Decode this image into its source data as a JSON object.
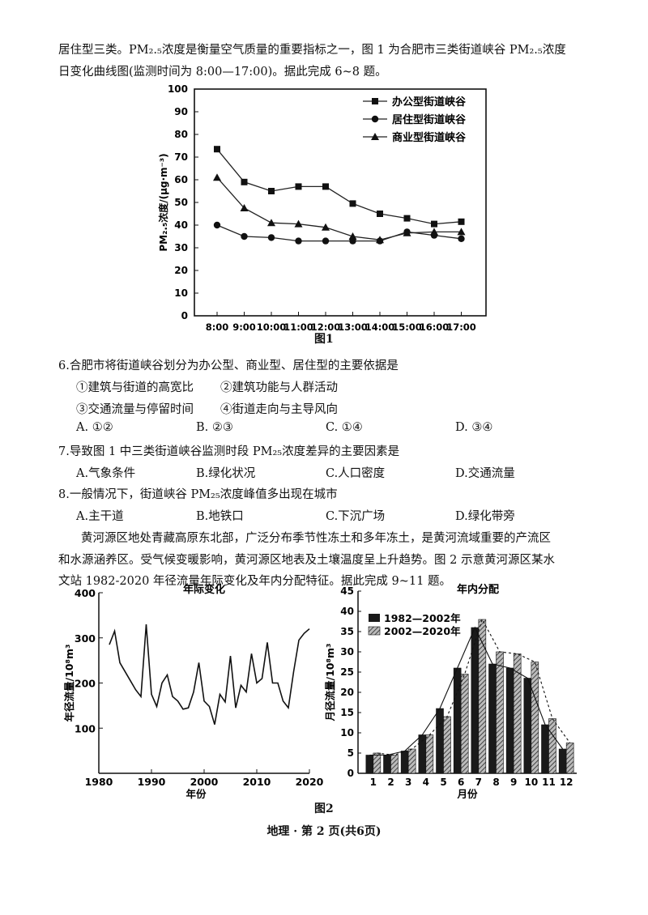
{
  "intro": {
    "line1": "居住型三类。PM₂.₅浓度是衡量空气质量的重要指标之一，图 1 为合肥市三类街道峡谷 PM₂.₅浓度",
    "line2": "日变化曲线图(监测时间为 8:00—17:00)。据此完成 6~8 题。"
  },
  "fig1": {
    "caption": "图1",
    "chart_data": {
      "type": "line",
      "x": [
        "8:00",
        "9:00",
        "10:00",
        "11:00",
        "12:00",
        "13:00",
        "14:00",
        "15:00",
        "16:00",
        "17:00"
      ],
      "ylabel": "PM₂.₅浓度/(μg·m⁻³)",
      "ylim": [
        0,
        100
      ],
      "yticks": [
        0,
        10,
        20,
        30,
        40,
        50,
        60,
        70,
        80,
        90,
        100
      ],
      "legend_position": "top-right",
      "series": [
        {
          "name": "办公型街道峡谷",
          "marker": "square",
          "values": [
            73.5,
            59,
            55,
            57,
            57,
            49.5,
            45,
            43,
            40.5,
            41.5
          ]
        },
        {
          "name": "居住型街道峡谷",
          "marker": "circle",
          "values": [
            40,
            35,
            34.5,
            33,
            33,
            33,
            33,
            37,
            35.5,
            34
          ]
        },
        {
          "name": "商业型街道峡谷",
          "marker": "triangle",
          "values": [
            61,
            47.5,
            41,
            40.5,
            39,
            35,
            33.5,
            36.5,
            37,
            37
          ]
        }
      ]
    }
  },
  "q6": {
    "stem": "6.合肥市将街道峡谷划分为办公型、商业型、居住型的主要依据是",
    "s1": "①建筑与街道的高宽比",
    "s2": "②建筑功能与人群活动",
    "s3": "③交通流量与停留时间",
    "s4": "④街道走向与主导风向",
    "a": "A. ①②",
    "b": "B. ②③",
    "c": "C. ①④",
    "d": "D. ③④"
  },
  "q7": {
    "stem": "7.导致图 1 中三类街道峡谷监测时段 PM₂₅浓度差异的主要因素是",
    "a": "A.气象条件",
    "b": "B.绿化状况",
    "c": "C.人口密度",
    "d": "D.交通流量"
  },
  "q8": {
    "stem": "8.一般情况下，街道峡谷 PM₂₅浓度峰值多出现在城市",
    "a": "A.主干道",
    "b": "B.地铁口",
    "c": "C.下沉广场",
    "d": "D.绿化带旁"
  },
  "passage2": {
    "line1": "黄河源区地处青藏高原东北部，广泛分布季节性冻土和多年冻土，是黄河流域重要的产流区",
    "line2": "和水源涵养区。受气候变暖影响，黄河源区地表及土壤温度呈上升趋势。图 2 示意黄河源区某水",
    "line3": "文站 1982-2020 年径流量年际变化及年内分配特征。据此完成 9~11 题。"
  },
  "fig2": {
    "caption": "图2",
    "left": {
      "title": "年际变化",
      "chart_data": {
        "type": "line",
        "title": "年际变化",
        "xlabel": "年份",
        "ylabel": "年径流量/10⁸m³",
        "xlim": [
          1980,
          2020
        ],
        "ylim": [
          0,
          400
        ],
        "xticks": [
          1980,
          1990,
          2000,
          2010,
          2020
        ],
        "yticks": [
          100,
          200,
          300,
          400
        ],
        "x": [
          1982,
          1983,
          1984,
          1985,
          1986,
          1987,
          1988,
          1989,
          1990,
          1991,
          1992,
          1993,
          1994,
          1995,
          1996,
          1997,
          1998,
          1999,
          2000,
          2001,
          2002,
          2003,
          2004,
          2005,
          2006,
          2007,
          2008,
          2009,
          2010,
          2011,
          2012,
          2013,
          2014,
          2015,
          2016,
          2017,
          2018,
          2019,
          2020
        ],
        "values": [
          285,
          315,
          245,
          225,
          205,
          185,
          170,
          330,
          175,
          148,
          200,
          218,
          170,
          160,
          142,
          145,
          180,
          245,
          160,
          148,
          108,
          175,
          158,
          260,
          145,
          195,
          180,
          265,
          200,
          210,
          290,
          200,
          200,
          160,
          145,
          225,
          295,
          310,
          320
        ]
      }
    },
    "right": {
      "title": "年内分配",
      "chart_data": {
        "type": "bar",
        "title": "年内分配",
        "xlabel": "月份",
        "ylabel": "月径流量/10⁸m³",
        "categories": [
          "1",
          "2",
          "3",
          "4",
          "5",
          "6",
          "7",
          "8",
          "9",
          "10",
          "11",
          "12"
        ],
        "ylim": [
          0,
          45
        ],
        "yticks": [
          0,
          5,
          10,
          15,
          20,
          25,
          30,
          35,
          40,
          45
        ],
        "legend_position": "top-left",
        "series": [
          {
            "name": "1982—2002年",
            "values": [
              4.5,
              4.5,
              5.5,
              9.5,
              16,
              26,
              36,
              27,
              26,
              23.5,
              12,
              6
            ],
            "style": "solid",
            "color": "#1a1a1a"
          },
          {
            "name": "2002—2020年",
            "values": [
              5,
              4.5,
              6,
              9.5,
              14,
              24.5,
              38,
              30,
              29.5,
              27.5,
              13.5,
              7.5
            ],
            "style": "hatched",
            "color": "#777777"
          }
        ]
      }
    }
  },
  "footer": "地理 · 第 2 页(共6页)"
}
